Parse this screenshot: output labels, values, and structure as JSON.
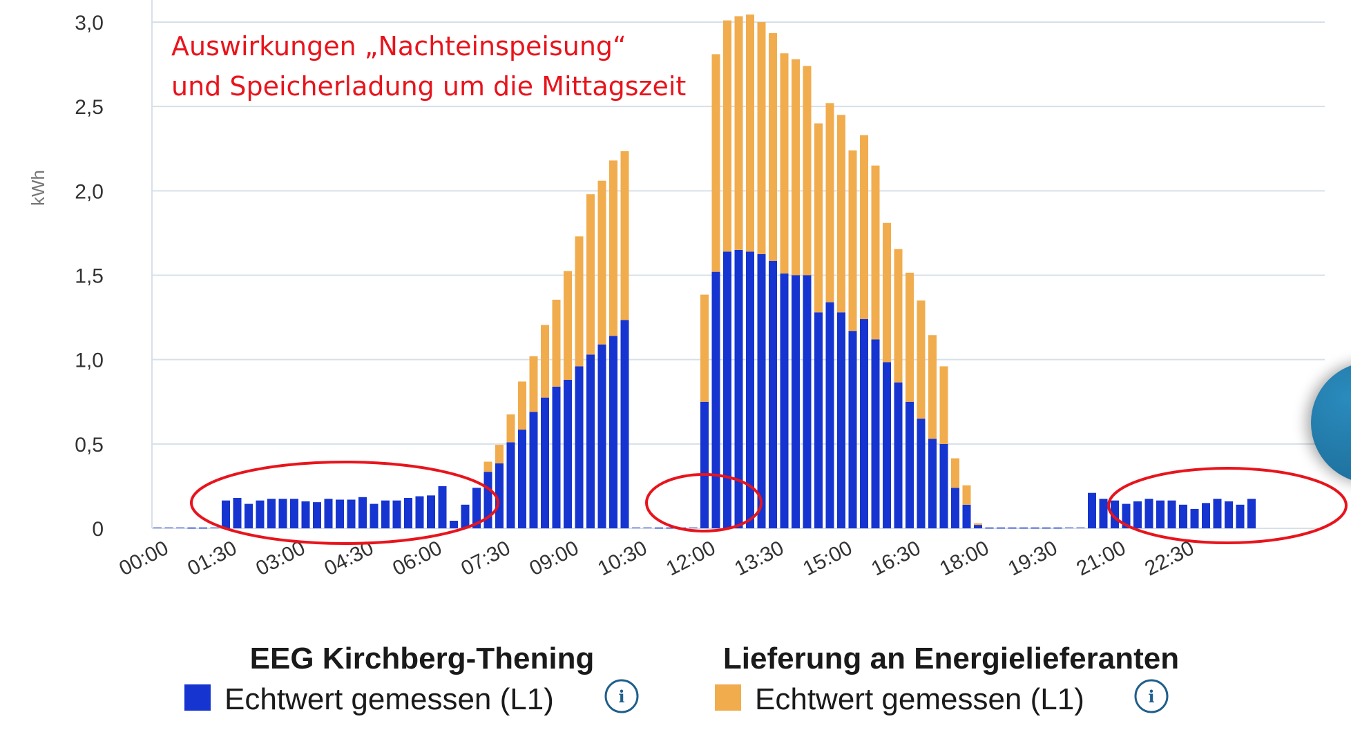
{
  "chart_data": {
    "type": "bar",
    "stacked": true,
    "ylabel": "kWh",
    "ylim": [
      0,
      3.0
    ],
    "yticks": [
      0,
      0.5,
      1.0,
      1.5,
      2.0,
      2.5,
      3.0
    ],
    "ytick_labels": [
      "0",
      "0,5",
      "1,0",
      "1,5",
      "2,0",
      "2,5",
      "3,0"
    ],
    "grid": true,
    "interval": "15 min",
    "xticks": [
      {
        "index": 0,
        "label": "00:00"
      },
      {
        "index": 6,
        "label": "01:30"
      },
      {
        "index": 12,
        "label": "03:00"
      },
      {
        "index": 18,
        "label": "04:30"
      },
      {
        "index": 24,
        "label": "06:00"
      },
      {
        "index": 30,
        "label": "07:30"
      },
      {
        "index": 36,
        "label": "09:00"
      },
      {
        "index": 42,
        "label": "10:30"
      },
      {
        "index": 48,
        "label": "12:00"
      },
      {
        "index": 54,
        "label": "13:30"
      },
      {
        "index": 60,
        "label": "15:00"
      },
      {
        "index": 66,
        "label": "16:30"
      },
      {
        "index": 72,
        "label": "18:00"
      },
      {
        "index": 78,
        "label": "19:30"
      },
      {
        "index": 84,
        "label": "21:00"
      },
      {
        "index": 90,
        "label": "22:30"
      }
    ],
    "series": [
      {
        "name": "EEG Kirchberg-Thening",
        "legend_label": "Echtwert gemessen (L1)",
        "color": "#1634cf",
        "values": [
          0,
          0,
          0,
          0.005,
          0.005,
          0,
          0.165,
          0.18,
          0.145,
          0.165,
          0.175,
          0.175,
          0.175,
          0.16,
          0.155,
          0.175,
          0.17,
          0.17,
          0.185,
          0.145,
          0.165,
          0.165,
          0.18,
          0.19,
          0.195,
          0.25,
          0.045,
          0.14,
          0.24,
          0.335,
          0.385,
          0.51,
          0.585,
          0.69,
          0.775,
          0.84,
          0.88,
          0.96,
          1.03,
          1.09,
          1.14,
          1.235,
          0,
          0,
          0.005,
          0.005,
          0.005,
          0,
          0.75,
          1.52,
          1.64,
          1.65,
          1.64,
          1.625,
          1.585,
          1.51,
          1.5,
          1.5,
          1.28,
          1.34,
          1.28,
          1.17,
          1.24,
          1.12,
          0.985,
          0.865,
          0.75,
          0.65,
          0.53,
          0.5,
          0.24,
          0.14,
          0.02,
          0.005,
          0.005,
          0.005,
          0.005,
          0.005,
          0.005,
          0.005,
          0,
          0,
          0.21,
          0.175,
          0.165,
          0.145,
          0.16,
          0.175,
          0.165,
          0.165,
          0.14,
          0.115,
          0.15,
          0.175,
          0.16,
          0.14,
          0.175
        ]
      },
      {
        "name": "Lieferung an Energielieferanten",
        "legend_label": "Echtwert gemessen (L1)",
        "color": "#f1ac4e",
        "values": [
          0,
          0,
          0,
          0,
          0,
          0,
          0,
          0,
          0,
          0,
          0,
          0,
          0,
          0,
          0,
          0,
          0,
          0,
          0,
          0,
          0,
          0,
          0,
          0,
          0,
          0,
          0,
          0,
          0,
          0.06,
          0.11,
          0.165,
          0.285,
          0.33,
          0.43,
          0.515,
          0.645,
          0.77,
          0.95,
          0.97,
          1.04,
          1.0,
          0,
          0,
          0,
          0,
          0,
          0,
          0.635,
          1.29,
          1.37,
          1.385,
          1.405,
          1.375,
          1.35,
          1.305,
          1.28,
          1.24,
          1.12,
          1.18,
          1.17,
          1.07,
          1.09,
          1.03,
          0.825,
          0.79,
          0.765,
          0.7,
          0.615,
          0.46,
          0.175,
          0.115,
          0.01,
          0,
          0,
          0,
          0,
          0,
          0,
          0,
          0,
          0,
          0,
          0,
          0,
          0,
          0,
          0,
          0,
          0,
          0,
          0,
          0,
          0,
          0,
          0,
          0
        ]
      }
    ],
    "annotations": [
      "Auswirkungen „Nachteinspeisung“",
      "und Speicherladung um die Mittagszeit"
    ],
    "highlight_ellipses": [
      "night 01:30–06:00",
      "10:30–12:00",
      "21:00–24:00"
    ]
  },
  "legend": {
    "groups": [
      {
        "title": "EEG Kirchberg-Thening",
        "label": "Echtwert gemessen (L1)",
        "color": "#1634cf"
      },
      {
        "title": "Lieferung an Energielieferanten",
        "label": "Echtwert gemessen (L1)",
        "color": "#f1ac4e"
      }
    ],
    "info_icon": "info-icon",
    "info_glyph": "i"
  },
  "colors": {
    "grid": "#d6e0e8",
    "axis_text": "#333333",
    "annotation": "#e8141c",
    "ellipse": "#e8141c",
    "info_icon": "#1f5f8b",
    "fab": "#1f77a4"
  }
}
